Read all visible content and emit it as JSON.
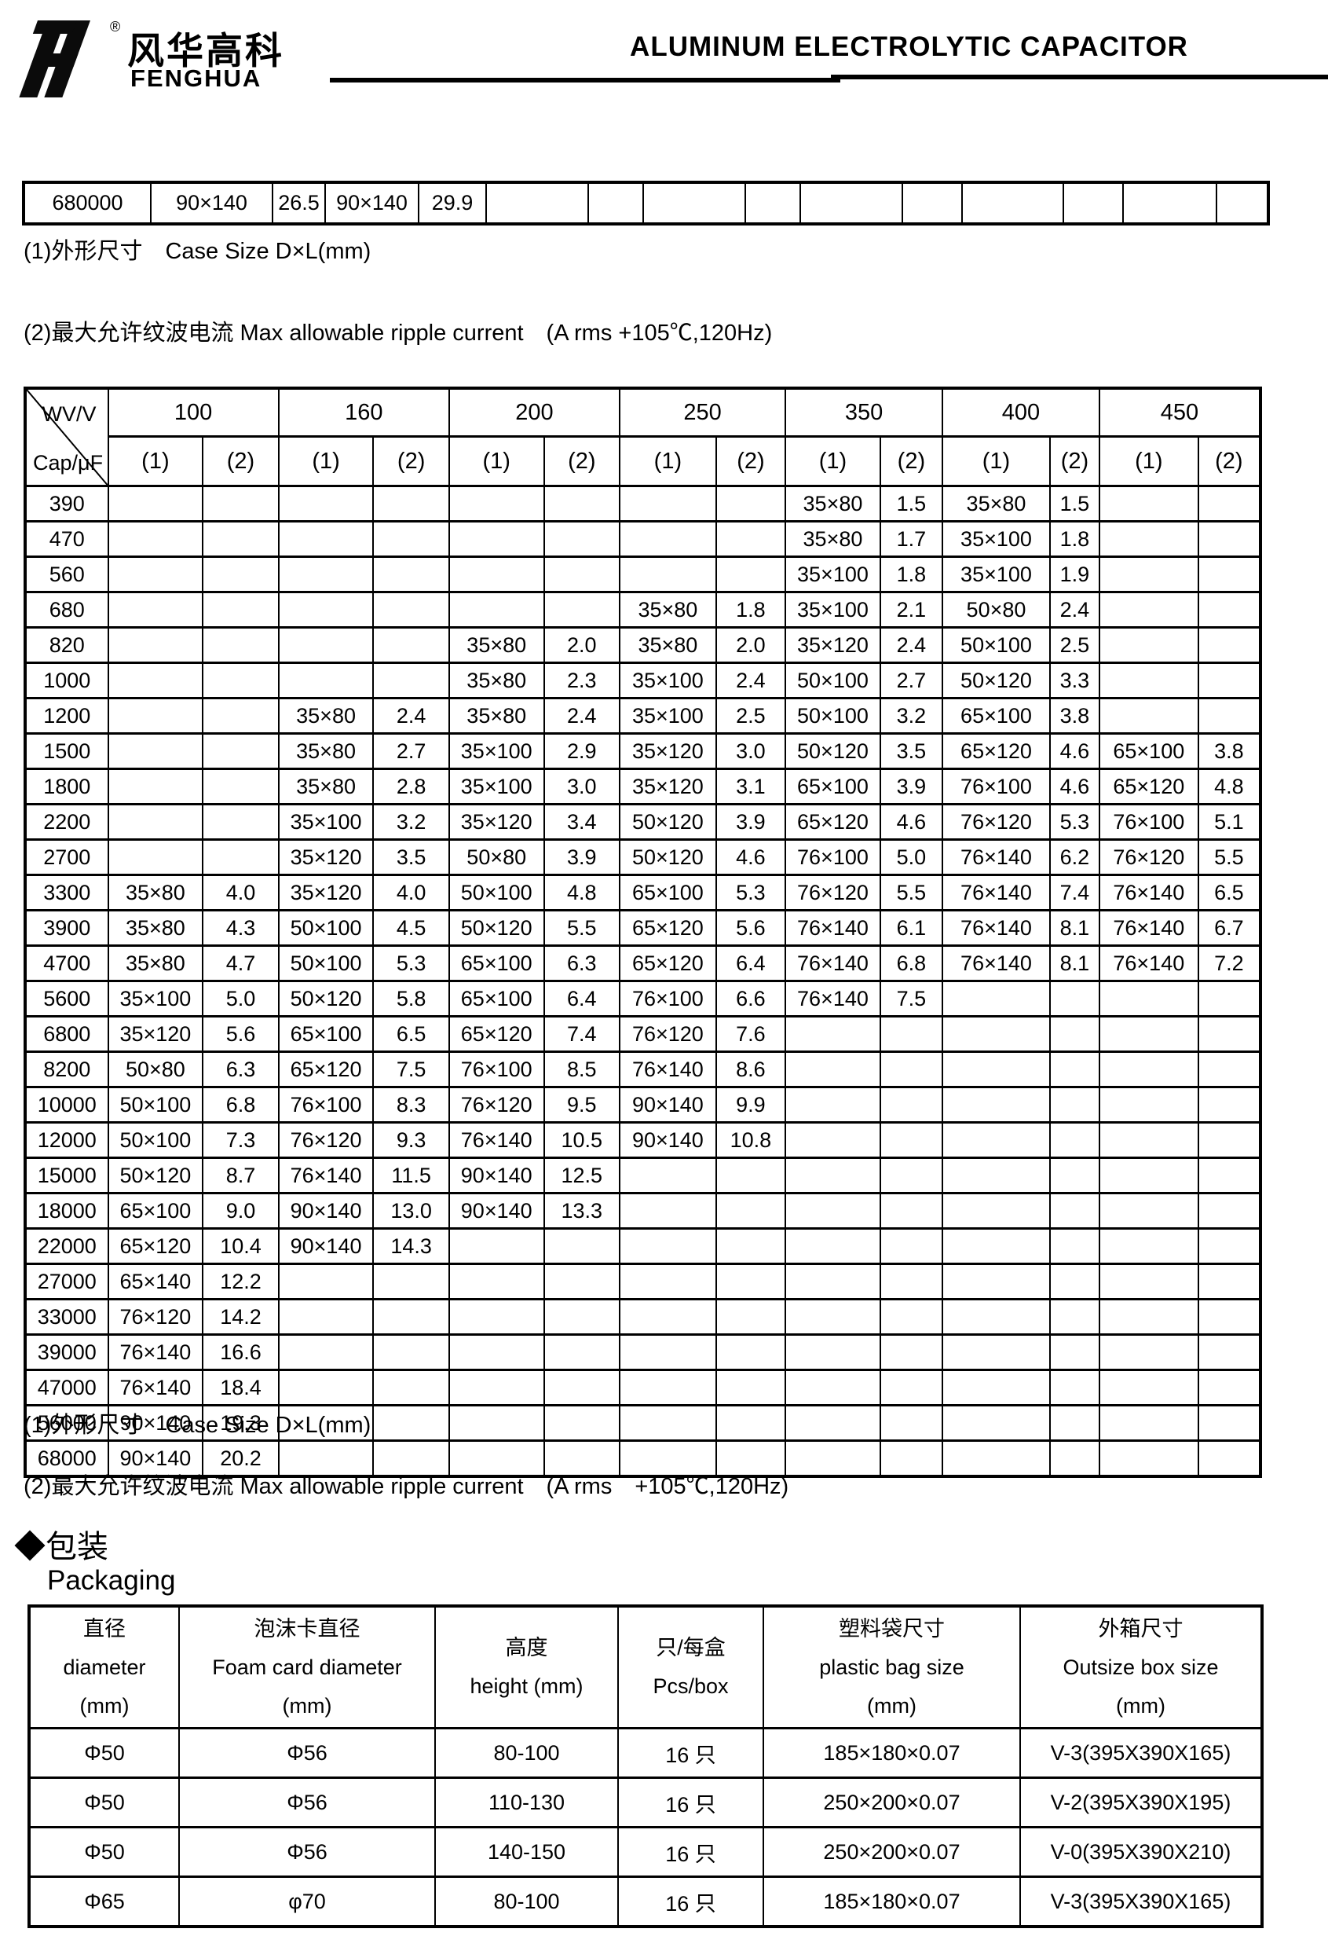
{
  "header": {
    "brand_cn": "风华高科",
    "brand_en": "FENGHUA",
    "registered_mark": "®",
    "title": "ALUMINUM ELECTROLYTIC CAPACITOR"
  },
  "top_table": {
    "cells": [
      "680000",
      "90×140",
      "26.5",
      "90×140",
      "29.9",
      "",
      "",
      "",
      "",
      "",
      "",
      "",
      "",
      "",
      ""
    ]
  },
  "notes_top": [
    "(1)外形尺寸　Case Size D×L(mm)",
    "(2)最大允许纹波电流 Max allowable ripple current　(A rms +105℃,120Hz)"
  ],
  "main_table": {
    "corner_top": "WV/V",
    "corner_bottom": "Cap/μF",
    "voltages": [
      "100",
      "160",
      "200",
      "250",
      "350",
      "400",
      "450"
    ],
    "subheaders": [
      "(1)",
      "(2)"
    ],
    "rows": [
      {
        "cap": "390",
        "cells": [
          "",
          "",
          "",
          "",
          "",
          "",
          "",
          "",
          "35×80",
          "1.5",
          "35×80",
          "1.5",
          "",
          ""
        ]
      },
      {
        "cap": "470",
        "cells": [
          "",
          "",
          "",
          "",
          "",
          "",
          "",
          "",
          "35×80",
          "1.7",
          "35×100",
          "1.8",
          "",
          ""
        ]
      },
      {
        "cap": "560",
        "cells": [
          "",
          "",
          "",
          "",
          "",
          "",
          "",
          "",
          "35×100",
          "1.8",
          "35×100",
          "1.9",
          "",
          ""
        ]
      },
      {
        "cap": "680",
        "cells": [
          "",
          "",
          "",
          "",
          "",
          "",
          "35×80",
          "1.8",
          "35×100",
          "2.1",
          "50×80",
          "2.4",
          "",
          ""
        ]
      },
      {
        "cap": "820",
        "cells": [
          "",
          "",
          "",
          "",
          "35×80",
          "2.0",
          "35×80",
          "2.0",
          "35×120",
          "2.4",
          "50×100",
          "2.5",
          "",
          ""
        ]
      },
      {
        "cap": "1000",
        "cells": [
          "",
          "",
          "",
          "",
          "35×80",
          "2.3",
          "35×100",
          "2.4",
          "50×100",
          "2.7",
          "50×120",
          "3.3",
          "",
          ""
        ]
      },
      {
        "cap": "1200",
        "cells": [
          "",
          "",
          "35×80",
          "2.4",
          "35×80",
          "2.4",
          "35×100",
          "2.5",
          "50×100",
          "3.2",
          "65×100",
          "3.8",
          "",
          ""
        ]
      },
      {
        "cap": "1500",
        "cells": [
          "",
          "",
          "35×80",
          "2.7",
          "35×100",
          "2.9",
          "35×120",
          "3.0",
          "50×120",
          "3.5",
          "65×120",
          "4.6",
          "65×100",
          "3.8"
        ]
      },
      {
        "cap": "1800",
        "cells": [
          "",
          "",
          "35×80",
          "2.8",
          "35×100",
          "3.0",
          "35×120",
          "3.1",
          "65×100",
          "3.9",
          "76×100",
          "4.6",
          "65×120",
          "4.8"
        ]
      },
      {
        "cap": "2200",
        "cells": [
          "",
          "",
          "35×100",
          "3.2",
          "35×120",
          "3.4",
          "50×120",
          "3.9",
          "65×120",
          "4.6",
          "76×120",
          "5.3",
          "76×100",
          "5.1"
        ]
      },
      {
        "cap": "2700",
        "cells": [
          "",
          "",
          "35×120",
          "3.5",
          "50×80",
          "3.9",
          "50×120",
          "4.6",
          "76×100",
          "5.0",
          "76×140",
          "6.2",
          "76×120",
          "5.5"
        ]
      },
      {
        "cap": "3300",
        "cells": [
          "35×80",
          "4.0",
          "35×120",
          "4.0",
          "50×100",
          "4.8",
          "65×100",
          "5.3",
          "76×120",
          "5.5",
          "76×140",
          "7.4",
          "76×140",
          "6.5"
        ]
      },
      {
        "cap": "3900",
        "cells": [
          "35×80",
          "4.3",
          "50×100",
          "4.5",
          "50×120",
          "5.5",
          "65×120",
          "5.6",
          "76×140",
          "6.1",
          "76×140",
          "8.1",
          "76×140",
          "6.7"
        ]
      },
      {
        "cap": "4700",
        "cells": [
          "35×80",
          "4.7",
          "50×100",
          "5.3",
          "65×100",
          "6.3",
          "65×120",
          "6.4",
          "76×140",
          "6.8",
          "76×140",
          "8.1",
          "76×140",
          "7.2"
        ]
      },
      {
        "cap": "5600",
        "cells": [
          "35×100",
          "5.0",
          "50×120",
          "5.8",
          "65×100",
          "6.4",
          "76×100",
          "6.6",
          "76×140",
          "7.5",
          "",
          "",
          "",
          ""
        ]
      },
      {
        "cap": "6800",
        "cells": [
          "35×120",
          "5.6",
          "65×100",
          "6.5",
          "65×120",
          "7.4",
          "76×120",
          "7.6",
          "",
          "",
          "",
          "",
          "",
          ""
        ]
      },
      {
        "cap": "8200",
        "cells": [
          "50×80",
          "6.3",
          "65×120",
          "7.5",
          "76×100",
          "8.5",
          "76×140",
          "8.6",
          "",
          "",
          "",
          "",
          "",
          ""
        ]
      },
      {
        "cap": "10000",
        "cells": [
          "50×100",
          "6.8",
          "76×100",
          "8.3",
          "76×120",
          "9.5",
          "90×140",
          "9.9",
          "",
          "",
          "",
          "",
          "",
          ""
        ]
      },
      {
        "cap": "12000",
        "cells": [
          "50×100",
          "7.3",
          "76×120",
          "9.3",
          "76×140",
          "10.5",
          "90×140",
          "10.8",
          "",
          "",
          "",
          "",
          "",
          ""
        ]
      },
      {
        "cap": "15000",
        "cells": [
          "50×120",
          "8.7",
          "76×140",
          "11.5",
          "90×140",
          "12.5",
          "",
          "",
          "",
          "",
          "",
          "",
          "",
          ""
        ]
      },
      {
        "cap": "18000",
        "cells": [
          "65×100",
          "9.0",
          "90×140",
          "13.0",
          "90×140",
          "13.3",
          "",
          "",
          "",
          "",
          "",
          "",
          "",
          ""
        ]
      },
      {
        "cap": "22000",
        "cells": [
          "65×120",
          "10.4",
          "90×140",
          "14.3",
          "",
          "",
          "",
          "",
          "",
          "",
          "",
          "",
          "",
          ""
        ]
      },
      {
        "cap": "27000",
        "cells": [
          "65×140",
          "12.2",
          "",
          "",
          "",
          "",
          "",
          "",
          "",
          "",
          "",
          "",
          "",
          ""
        ]
      },
      {
        "cap": "33000",
        "cells": [
          "76×120",
          "14.2",
          "",
          "",
          "",
          "",
          "",
          "",
          "",
          "",
          "",
          "",
          "",
          ""
        ]
      },
      {
        "cap": "39000",
        "cells": [
          "76×140",
          "16.6",
          "",
          "",
          "",
          "",
          "",
          "",
          "",
          "",
          "",
          "",
          "",
          ""
        ]
      },
      {
        "cap": "47000",
        "cells": [
          "76×140",
          "18.4",
          "",
          "",
          "",
          "",
          "",
          "",
          "",
          "",
          "",
          "",
          "",
          ""
        ]
      },
      {
        "cap": "56000",
        "cells": [
          "90×140",
          "19.3",
          "",
          "",
          "",
          "",
          "",
          "",
          "",
          "",
          "",
          "",
          "",
          ""
        ]
      },
      {
        "cap": "68000",
        "cells": [
          "90×140",
          "20.2",
          "",
          "",
          "",
          "",
          "",
          "",
          "",
          "",
          "",
          "",
          "",
          ""
        ]
      }
    ]
  },
  "notes_bottom": [
    "(1)外形尺寸　Case Size D×L(mm)",
    "(2)最大允许纹波电流 Max allowable ripple current　(A rms　+105℃,120Hz)"
  ],
  "packaging": {
    "section_cn": "◆包装",
    "section_en": "Packaging",
    "headers": [
      [
        "直径",
        "diameter",
        "(mm)"
      ],
      [
        "泡沫卡直径",
        "Foam card diameter",
        "(mm)"
      ],
      [
        "高度",
        "height (mm)"
      ],
      [
        "只/每盒",
        "Pcs/box"
      ],
      [
        "塑料袋尺寸",
        "plastic bag size",
        "(mm)"
      ],
      [
        "外箱尺寸",
        "Outsize box size",
        "(mm)"
      ]
    ],
    "rows": [
      [
        "Φ50",
        "Φ56",
        "80-100",
        "16 只",
        "185×180×0.07",
        "V-3(395X390X165)"
      ],
      [
        "Φ50",
        "Φ56",
        "110-130",
        "16 只",
        "250×200×0.07",
        "V-2(395X390X195)"
      ],
      [
        "Φ50",
        "Φ56",
        "140-150",
        "16 只",
        "250×200×0.07",
        "V-0(395X390X210)"
      ],
      [
        "Φ65",
        "φ70",
        "80-100",
        "16 只",
        "185×180×0.07",
        "V-3(395X390X165)"
      ]
    ]
  }
}
